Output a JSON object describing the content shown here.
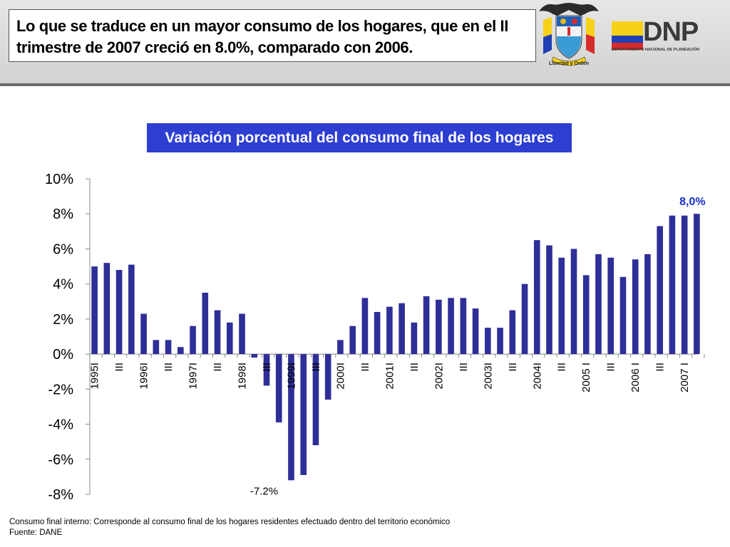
{
  "header": {
    "headline_lines": [
      "Lo que se traduce en un mayor consumo de los hogares, que en el II",
      "trimestre de 2007 creció en 8.0%, comparado con 2006."
    ],
    "seal_caption": "Libertad y Orden",
    "logo_name": "DNP",
    "logo_subtitle": "DEPARTAMENTO NACIONAL DE PLANEACIÓN"
  },
  "colors": {
    "bar": "#2e2e98",
    "title_bg": "#2d3ed1",
    "highlight_label": "#1a2fc9",
    "flag_yellow": "#f7d117",
    "flag_blue": "#1f3fb5",
    "flag_red": "#d62b2b"
  },
  "chart_data": {
    "type": "bar",
    "title": "Variación porcentual del consumo final de los hogares",
    "ylim": [
      -8,
      10
    ],
    "yticks": [
      "10%",
      "8%",
      "6%",
      "4%",
      "2%",
      "0%",
      "-2%",
      "-4%",
      "-6%",
      "-8%"
    ],
    "ytick_values": [
      10,
      8,
      6,
      4,
      2,
      0,
      -2,
      -4,
      -6,
      -8
    ],
    "xtick_labels": [
      "1995I",
      "III",
      "1996I",
      "III",
      "1997I",
      "III",
      "1998I",
      "III",
      "1999I",
      "III",
      "2000I",
      "III",
      "2001I",
      "III",
      "2002I",
      "III",
      "2003I",
      "III",
      "2004I",
      "III",
      "2005 I",
      "III",
      "2006 I",
      "III",
      "2007 I"
    ],
    "values": [
      5.0,
      5.2,
      4.8,
      5.1,
      2.3,
      0.8,
      0.8,
      0.4,
      1.6,
      3.5,
      2.5,
      1.8,
      2.3,
      -0.2,
      -1.8,
      -3.9,
      -7.2,
      -6.9,
      -5.2,
      -2.6,
      0.8,
      1.6,
      3.2,
      2.4,
      2.7,
      2.9,
      1.8,
      3.3,
      3.1,
      3.2,
      3.2,
      2.6,
      1.5,
      1.5,
      2.5,
      4.0,
      6.5,
      6.2,
      5.5,
      6.0,
      4.5,
      5.7,
      5.5,
      4.4,
      5.4,
      5.7,
      7.3,
      7.9,
      7.9,
      8.0
    ],
    "annotations": [
      {
        "text": "8,0%",
        "bar_index": 49
      },
      {
        "text": "-7.2%",
        "bar_index": 16
      }
    ],
    "grid": false,
    "legend": "none"
  },
  "footnote": {
    "line1": "Consumo final interno: Corresponde al consumo final  de los hogares residentes efectuado dentro del territorio económico",
    "line2": "Fuente: DANE"
  }
}
